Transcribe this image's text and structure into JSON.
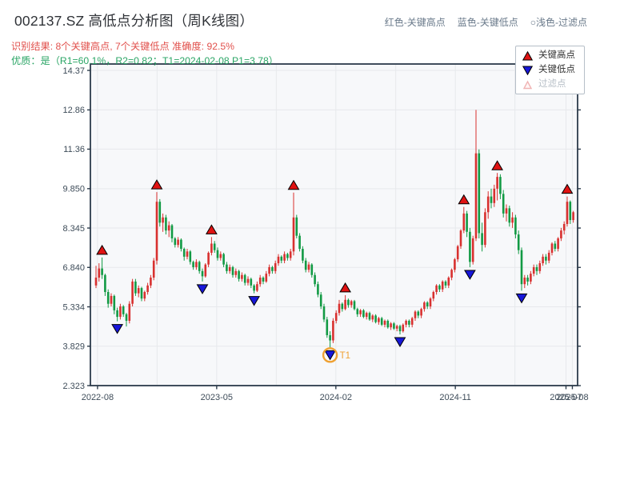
{
  "header": {
    "title": "002137.SZ 高低点分析图（周K线图）",
    "subtitle_red": "识别结果: 8个关键高点, 7个关键低点  准确度: 92.5%",
    "subtitle_green": "优质：是（R1=60.1%，R2=0.82；T1=2024-02-08 P1=3.78）",
    "legend_inline": [
      "红色-关键高点",
      "蓝色-关键低点",
      "○浅色-过滤点"
    ]
  },
  "legend_box": {
    "items": [
      {
        "label": "关键高点",
        "type": "key-high"
      },
      {
        "label": "关键低点",
        "type": "key-low"
      },
      {
        "label": "过滤点",
        "type": "filtered"
      }
    ]
  },
  "chart_data": {
    "type": "candlestick",
    "symbol": "002137.SZ",
    "freq": "weekly",
    "start_date": "2022-08-19",
    "interval_days": 7,
    "ylim": [
      2.323,
      14.62
    ],
    "grid": true,
    "y_ticks": [
      {
        "label": "14.37",
        "value": 14.37
      },
      {
        "label": "12.86",
        "value": 12.86
      },
      {
        "label": "11.36",
        "value": 11.36
      },
      {
        "label": "9.850",
        "value": 9.85
      },
      {
        "label": "8.345",
        "value": 8.345
      },
      {
        "label": "6.840",
        "value": 6.84
      },
      {
        "label": "5.334",
        "value": 5.334
      },
      {
        "label": "3.829",
        "value": 3.829
      },
      {
        "label": "2.323",
        "value": 2.323
      }
    ],
    "x_ticks": [
      {
        "label": "2022-08",
        "week": 0.5
      },
      {
        "label": "",
        "week": 20.1
      },
      {
        "label": "2023-05",
        "week": 39.7
      },
      {
        "label": "",
        "week": 59.3
      },
      {
        "label": "2024-02",
        "week": 78.9
      },
      {
        "label": "",
        "week": 98.6
      },
      {
        "label": "2024-11",
        "week": 118.2
      },
      {
        "label": "",
        "week": 137.8
      },
      {
        "label": "2025-07",
        "week": 154.6
      },
      {
        "label": "2025-08",
        "week": 156.7
      }
    ],
    "candles": [
      [
        6.15,
        6.9,
        6.05,
        6.45
      ],
      [
        6.45,
        7.0,
        6.3,
        6.8
      ],
      [
        6.8,
        7.22,
        6.4,
        6.55
      ],
      [
        6.55,
        6.6,
        5.75,
        5.9
      ],
      [
        5.9,
        6.0,
        5.3,
        5.45
      ],
      [
        5.45,
        5.85,
        5.35,
        5.75
      ],
      [
        5.75,
        5.8,
        5.05,
        5.2
      ],
      [
        5.2,
        5.3,
        4.78,
        4.95
      ],
      [
        4.95,
        5.45,
        4.85,
        5.35
      ],
      [
        5.35,
        5.4,
        4.95,
        5.05
      ],
      [
        5.05,
        5.1,
        4.58,
        4.8
      ],
      [
        4.8,
        5.55,
        4.7,
        5.45
      ],
      [
        5.45,
        6.4,
        5.35,
        6.3
      ],
      [
        6.3,
        6.4,
        5.75,
        5.85
      ],
      [
        5.85,
        6.15,
        5.7,
        6.05
      ],
      [
        6.05,
        6.1,
        5.55,
        5.65
      ],
      [
        5.65,
        5.95,
        5.55,
        5.9
      ],
      [
        5.9,
        6.25,
        5.8,
        6.15
      ],
      [
        6.15,
        6.55,
        6.05,
        6.45
      ],
      [
        6.45,
        7.2,
        6.35,
        7.1
      ],
      [
        7.1,
        9.72,
        6.95,
        9.35
      ],
      [
        9.35,
        9.45,
        8.4,
        8.55
      ],
      [
        8.55,
        8.9,
        8.2,
        8.75
      ],
      [
        8.75,
        8.85,
        8.1,
        8.25
      ],
      [
        8.25,
        8.6,
        8.0,
        8.45
      ],
      [
        8.45,
        8.5,
        7.8,
        7.95
      ],
      [
        7.95,
        8.0,
        7.6,
        7.7
      ],
      [
        7.7,
        8.0,
        7.6,
        7.9
      ],
      [
        7.9,
        7.95,
        7.45,
        7.55
      ],
      [
        7.55,
        7.6,
        7.1,
        7.25
      ],
      [
        7.25,
        7.55,
        7.15,
        7.45
      ],
      [
        7.45,
        7.5,
        6.95,
        7.05
      ],
      [
        7.05,
        7.1,
        6.75,
        6.85
      ],
      [
        6.85,
        7.15,
        6.75,
        7.05
      ],
      [
        7.05,
        7.1,
        6.6,
        6.7
      ],
      [
        6.7,
        6.8,
        6.3,
        6.5
      ],
      [
        6.5,
        7.0,
        6.45,
        6.95
      ],
      [
        6.95,
        7.45,
        6.85,
        7.4
      ],
      [
        7.4,
        8.0,
        7.3,
        7.75
      ],
      [
        7.75,
        7.85,
        7.4,
        7.5
      ],
      [
        7.5,
        7.6,
        7.1,
        7.2
      ],
      [
        7.2,
        7.45,
        7.1,
        7.35
      ],
      [
        7.35,
        7.4,
        6.85,
        6.95
      ],
      [
        6.95,
        7.05,
        6.6,
        6.7
      ],
      [
        6.7,
        6.95,
        6.6,
        6.85
      ],
      [
        6.85,
        6.9,
        6.45,
        6.55
      ],
      [
        6.55,
        6.8,
        6.45,
        6.7
      ],
      [
        6.7,
        6.75,
        6.3,
        6.4
      ],
      [
        6.4,
        6.65,
        6.3,
        6.55
      ],
      [
        6.55,
        6.6,
        6.15,
        6.25
      ],
      [
        6.25,
        6.5,
        6.15,
        6.4
      ],
      [
        6.4,
        6.45,
        6.05,
        6.15
      ],
      [
        6.15,
        6.2,
        5.85,
        5.95
      ],
      [
        5.95,
        6.3,
        5.9,
        6.2
      ],
      [
        6.2,
        6.55,
        6.1,
        6.45
      ],
      [
        6.45,
        6.5,
        6.2,
        6.3
      ],
      [
        6.3,
        6.7,
        6.25,
        6.6
      ],
      [
        6.6,
        6.95,
        6.5,
        6.85
      ],
      [
        6.85,
        6.9,
        6.6,
        6.7
      ],
      [
        6.7,
        7.1,
        6.6,
        7.0
      ],
      [
        7.0,
        7.35,
        6.9,
        7.25
      ],
      [
        7.25,
        7.3,
        7.0,
        7.1
      ],
      [
        7.1,
        7.45,
        7.0,
        7.35
      ],
      [
        7.35,
        7.4,
        7.1,
        7.2
      ],
      [
        7.2,
        7.55,
        7.1,
        7.45
      ],
      [
        7.45,
        9.7,
        7.3,
        8.75
      ],
      [
        8.75,
        8.85,
        7.95,
        8.05
      ],
      [
        8.05,
        8.15,
        7.45,
        7.55
      ],
      [
        7.55,
        7.65,
        7.0,
        7.1
      ],
      [
        7.1,
        7.2,
        6.65,
        6.75
      ],
      [
        6.75,
        7.05,
        6.65,
        6.95
      ],
      [
        6.95,
        7.0,
        6.45,
        6.55
      ],
      [
        6.55,
        6.65,
        6.1,
        6.2
      ],
      [
        6.2,
        6.3,
        5.7,
        5.8
      ],
      [
        5.8,
        5.9,
        5.25,
        5.35
      ],
      [
        5.35,
        5.45,
        4.75,
        4.85
      ],
      [
        4.85,
        4.95,
        4.15,
        4.25
      ],
      [
        4.25,
        4.4,
        3.78,
        4.05
      ],
      [
        4.05,
        4.9,
        3.95,
        4.8
      ],
      [
        4.8,
        5.2,
        4.7,
        5.1
      ],
      [
        5.1,
        5.6,
        5.0,
        5.45
      ],
      [
        5.45,
        5.5,
        5.15,
        5.25
      ],
      [
        5.25,
        5.78,
        5.2,
        5.6
      ],
      [
        5.6,
        5.65,
        5.3,
        5.4
      ],
      [
        5.4,
        5.6,
        5.3,
        5.55
      ],
      [
        5.55,
        5.6,
        5.2,
        5.25
      ],
      [
        5.25,
        5.3,
        4.95,
        5.05
      ],
      [
        5.05,
        5.25,
        4.95,
        5.2
      ],
      [
        5.2,
        5.25,
        4.9,
        4.95
      ],
      [
        4.95,
        5.15,
        4.85,
        5.1
      ],
      [
        5.1,
        5.15,
        4.8,
        4.85
      ],
      [
        4.85,
        5.05,
        4.75,
        5.0
      ],
      [
        5.0,
        5.05,
        4.7,
        4.75
      ],
      [
        4.75,
        4.95,
        4.65,
        4.9
      ],
      [
        4.9,
        4.95,
        4.6,
        4.65
      ],
      [
        4.65,
        4.85,
        4.55,
        4.8
      ],
      [
        4.8,
        4.85,
        4.5,
        4.55
      ],
      [
        4.55,
        4.75,
        4.45,
        4.7
      ],
      [
        4.7,
        4.75,
        4.45,
        4.5
      ],
      [
        4.5,
        4.65,
        4.4,
        4.6
      ],
      [
        4.6,
        4.65,
        4.28,
        4.4
      ],
      [
        4.4,
        4.7,
        4.35,
        4.65
      ],
      [
        4.65,
        4.85,
        4.55,
        4.8
      ],
      [
        4.8,
        4.85,
        4.55,
        4.65
      ],
      [
        4.65,
        4.95,
        4.55,
        4.9
      ],
      [
        4.9,
        5.2,
        4.8,
        5.15
      ],
      [
        5.15,
        5.2,
        4.9,
        5.0
      ],
      [
        5.0,
        5.3,
        4.9,
        5.25
      ],
      [
        5.25,
        5.55,
        5.15,
        5.5
      ],
      [
        5.5,
        5.55,
        5.25,
        5.35
      ],
      [
        5.35,
        5.7,
        5.25,
        5.65
      ],
      [
        5.65,
        5.95,
        5.55,
        5.9
      ],
      [
        5.9,
        6.2,
        5.8,
        6.15
      ],
      [
        6.15,
        6.2,
        5.9,
        6.0
      ],
      [
        6.0,
        6.35,
        5.9,
        6.3
      ],
      [
        6.3,
        6.35,
        6.05,
        6.15
      ],
      [
        6.15,
        6.5,
        6.05,
        6.45
      ],
      [
        6.45,
        6.8,
        6.35,
        6.75
      ],
      [
        6.75,
        7.2,
        6.65,
        7.15
      ],
      [
        7.15,
        7.7,
        7.05,
        7.65
      ],
      [
        7.65,
        8.3,
        7.55,
        8.25
      ],
      [
        8.25,
        9.15,
        8.15,
        8.9
      ],
      [
        8.9,
        9.0,
        8.0,
        8.2
      ],
      [
        8.2,
        8.35,
        6.85,
        7.05
      ],
      [
        7.05,
        8.05,
        6.95,
        7.95
      ],
      [
        7.95,
        12.86,
        7.85,
        11.2
      ],
      [
        11.2,
        11.35,
        7.95,
        8.15
      ],
      [
        8.15,
        8.55,
        7.45,
        7.7
      ],
      [
        7.7,
        9.1,
        7.6,
        8.95
      ],
      [
        8.95,
        9.75,
        8.7,
        9.55
      ],
      [
        9.55,
        9.85,
        9.1,
        9.3
      ],
      [
        9.3,
        10.0,
        9.15,
        9.85
      ],
      [
        9.85,
        10.45,
        9.4,
        10.3
      ],
      [
        10.3,
        10.4,
        9.45,
        9.65
      ],
      [
        9.65,
        9.8,
        8.75,
        8.9
      ],
      [
        8.9,
        9.25,
        8.6,
        9.1
      ],
      [
        9.1,
        9.2,
        8.4,
        8.55
      ],
      [
        8.55,
        8.95,
        8.35,
        8.75
      ],
      [
        8.75,
        8.85,
        7.95,
        8.1
      ],
      [
        8.1,
        8.25,
        7.35,
        7.5
      ],
      [
        7.5,
        7.6,
        5.95,
        6.2
      ],
      [
        6.2,
        6.55,
        6.05,
        6.45
      ],
      [
        6.45,
        6.55,
        6.15,
        6.3
      ],
      [
        6.3,
        6.7,
        6.2,
        6.6
      ],
      [
        6.6,
        6.95,
        6.5,
        6.85
      ],
      [
        6.85,
        6.95,
        6.55,
        6.7
      ],
      [
        6.7,
        7.1,
        6.6,
        7.0
      ],
      [
        7.0,
        7.35,
        6.9,
        7.25
      ],
      [
        7.25,
        7.35,
        6.95,
        7.1
      ],
      [
        7.1,
        7.5,
        7.0,
        7.4
      ],
      [
        7.4,
        7.8,
        7.3,
        7.75
      ],
      [
        7.75,
        7.85,
        7.45,
        7.55
      ],
      [
        7.55,
        8.0,
        7.45,
        7.95
      ],
      [
        7.95,
        8.35,
        7.85,
        8.25
      ],
      [
        8.25,
        8.6,
        8.1,
        8.5
      ],
      [
        8.5,
        9.55,
        8.4,
        9.35
      ],
      [
        9.35,
        9.4,
        8.5,
        8.65
      ],
      [
        8.65,
        9.0,
        8.55,
        8.95
      ]
    ],
    "markers": {
      "key_highs": [
        {
          "week": 2,
          "date": "2022-09-02",
          "price": 7.22
        },
        {
          "week": 20,
          "date": "2023-01-06",
          "price": 9.72
        },
        {
          "week": 38,
          "date": "2023-05-12",
          "price": 8.0
        },
        {
          "week": 65,
          "date": "2023-11-17",
          "price": 9.7
        },
        {
          "week": 82,
          "date": "2024-03-15",
          "price": 5.78
        },
        {
          "week": 121,
          "date": "2024-12-13",
          "price": 9.15
        },
        {
          "week": 132,
          "date": "2025-02-28",
          "price": 10.45
        },
        {
          "week": 155,
          "date": "2025-08-08",
          "price": 9.55
        }
      ],
      "key_lows": [
        {
          "week": 7,
          "date": "2022-10-07",
          "price": 4.78
        },
        {
          "week": 35,
          "date": "2023-04-21",
          "price": 6.3
        },
        {
          "week": 52,
          "date": "2023-08-18",
          "price": 5.85
        },
        {
          "week": 77,
          "date": "2024-02-08",
          "price": 3.78
        },
        {
          "week": 100,
          "date": "2024-07-19",
          "price": 4.28
        },
        {
          "week": 123,
          "date": "2024-12-27",
          "price": 6.85
        },
        {
          "week": 140,
          "date": "2025-04-25",
          "price": 5.95
        }
      ],
      "filtered_points": []
    },
    "annotation": {
      "label": "T1",
      "week": 77,
      "date": "2024-02-08",
      "price": 3.78
    },
    "colors": {
      "up": "#d8302f",
      "down": "#129a44",
      "marker_high": "#e01212",
      "marker_low": "#1717d9",
      "marker_edge": "#000000",
      "filtered_marker": "#f0b4b4",
      "annotation": "#efa132",
      "plot_bg": "#f7f8fa",
      "grid": "#e7e9ec",
      "axis": "#2b3a4a",
      "tick_label": "#3e4c59"
    }
  }
}
